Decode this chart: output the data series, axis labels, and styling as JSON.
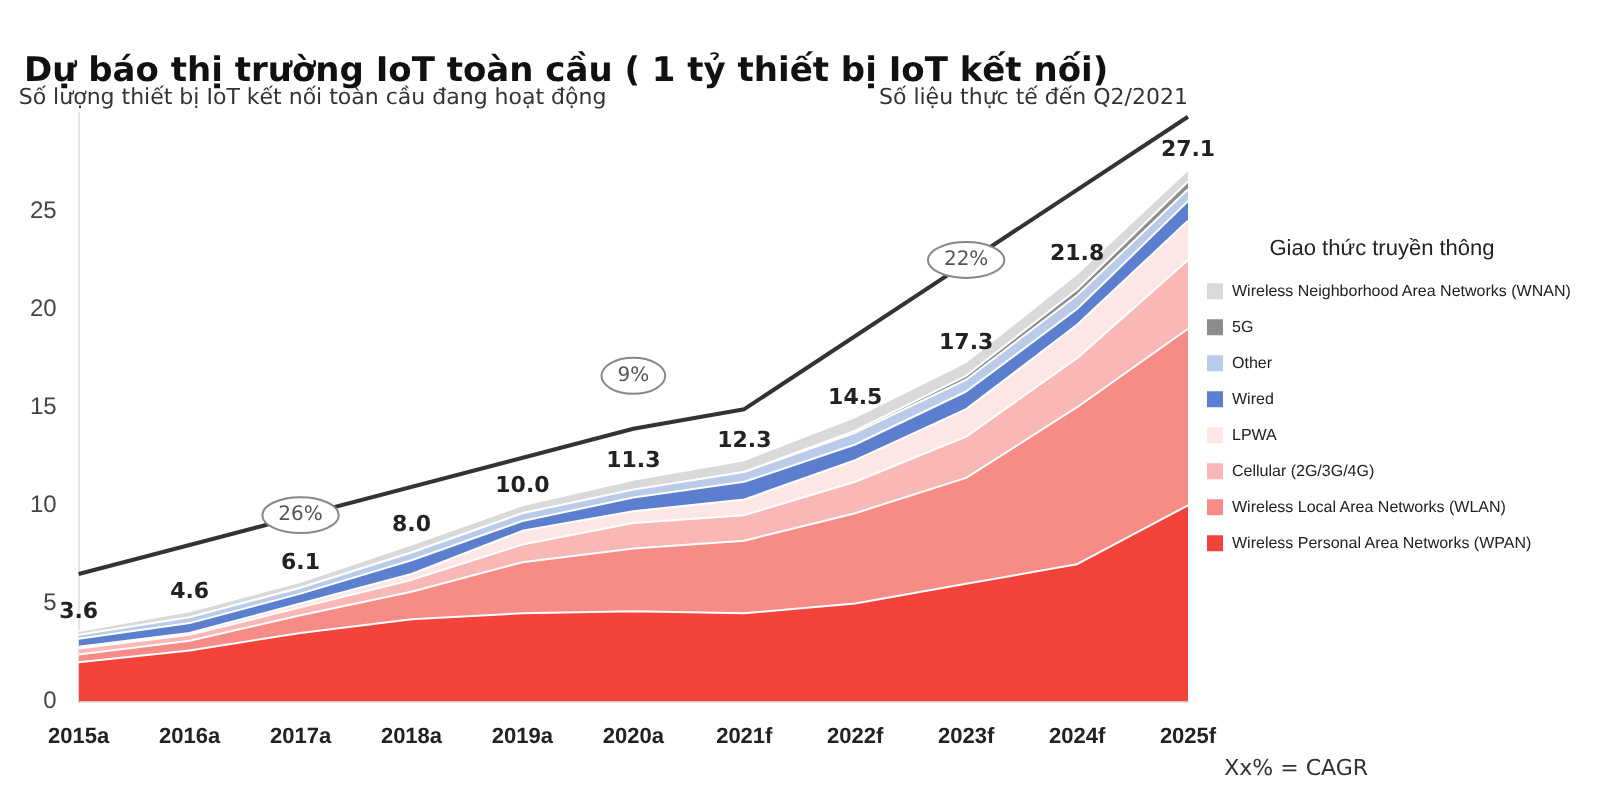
{
  "chart_data": {
    "type": "area",
    "stacked": true,
    "title": "Dự báo thị trường IoT toàn cầu ( 1 tỷ thiết bị IoT kết nối)",
    "ylabel": "Số lượng thiết bị IoT kết nối toàn cầu đang hoạt động",
    "legend_title": "Giao thức truyền thông",
    "categories": [
      "2015a",
      "2016a",
      "2017a",
      "2018a",
      "2019a",
      "2020a",
      "2021f",
      "2022f",
      "2023f",
      "2024f",
      "2025f"
    ],
    "series": [
      {
        "name": "Wireless Personal Area Networks (WPAN)",
        "color": "#f4433a",
        "values": [
          2.0,
          2.6,
          3.5,
          4.2,
          4.5,
          4.6,
          4.5,
          5.0,
          6.0,
          7.0,
          10.0
        ]
      },
      {
        "name": "Wireless Local Area Networks (WLAN)",
        "color": "#f78c86",
        "values": [
          0.4,
          0.5,
          0.9,
          1.4,
          2.6,
          3.2,
          3.7,
          4.6,
          5.4,
          8.0,
          9.0
        ]
      },
      {
        "name": "Cellular (2G/3G/4G)",
        "color": "#f9b8b5",
        "values": [
          0.3,
          0.3,
          0.4,
          0.6,
          0.9,
          1.3,
          1.3,
          1.6,
          2.1,
          2.5,
          3.5
        ]
      },
      {
        "name": "LPWA",
        "color": "#fde6e6",
        "values": [
          0.1,
          0.1,
          0.2,
          0.3,
          0.7,
          0.6,
          0.8,
          1.1,
          1.4,
          1.7,
          2.0
        ]
      },
      {
        "name": "Wired",
        "color": "#5b7fce",
        "values": [
          0.4,
          0.5,
          0.5,
          0.7,
          0.5,
          0.7,
          0.9,
          0.8,
          0.9,
          0.8,
          1.0
        ]
      },
      {
        "name": "Other",
        "color": "#b9cbe9",
        "values": [
          0.2,
          0.3,
          0.3,
          0.4,
          0.4,
          0.4,
          0.5,
          0.6,
          0.6,
          0.7,
          0.6
        ]
      },
      {
        "name": "5G",
        "color": "#8c8c8c",
        "values": [
          0,
          0,
          0,
          0,
          0,
          0,
          0,
          0.1,
          0.2,
          0.3,
          0.4
        ]
      },
      {
        "name": "Wireless Neighborhood Area Networks (WNAN)",
        "color": "#d9d9d9",
        "values": [
          0.2,
          0.3,
          0.3,
          0.4,
          0.4,
          0.5,
          0.6,
          0.7,
          0.7,
          0.8,
          0.6
        ]
      },
      {
        "type": "line",
        "color": "#333333",
        "values": [
          6.5,
          null,
          null,
          null,
          null,
          13.9,
          14.9,
          null,
          null,
          null,
          29.8
        ]
      }
    ],
    "totals": [
      "3.6",
      "4.6",
      "6.1",
      "8.0",
      "10.0",
      "11.3",
      "12.3",
      "14.5",
      "17.3",
      "21.8",
      "27.1"
    ],
    "annotations": [
      {
        "text": "26%",
        "x": "2017a",
        "y": 9.5
      },
      {
        "text": "9%",
        "x": "2020a",
        "y": 16.6
      },
      {
        "text": "22%",
        "x": "2023f",
        "y": 22.5
      },
      "Số liệu thực tế đến Q2/2021",
      "Xx% = CAGR"
    ],
    "ylim": [
      0,
      30
    ],
    "yticks": [
      0,
      5,
      10,
      15,
      20,
      25
    ],
    "grid": false,
    "legend": "right",
    "marker": "none"
  }
}
